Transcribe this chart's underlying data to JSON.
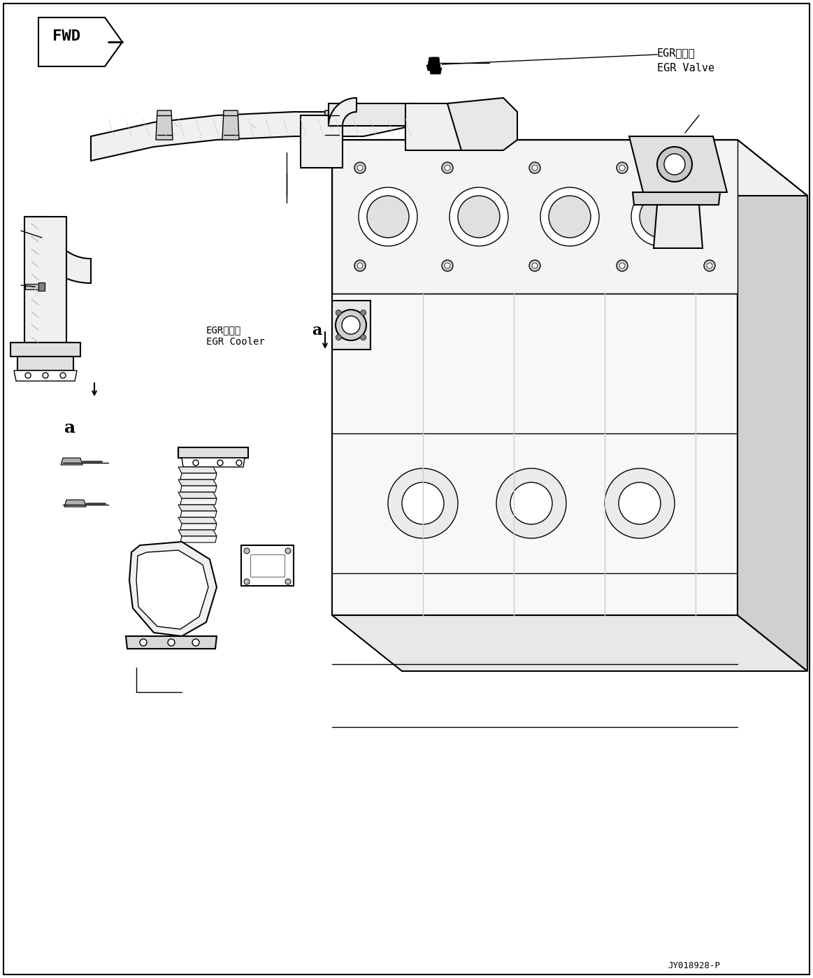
{
  "bg_color": "#ffffff",
  "line_color": "#000000",
  "fig_width": 11.63,
  "fig_height": 13.99,
  "dpi": 100,
  "label_egr_valve_jp": "EGRバルブ",
  "label_egr_valve_en": "EGR Valve",
  "label_egr_cooler_jp": "EGRクーラ",
  "label_egr_cooler_en": "EGR Cooler",
  "label_fwd": "FWD",
  "label_part_number": "JY018928-P",
  "label_a": "a"
}
